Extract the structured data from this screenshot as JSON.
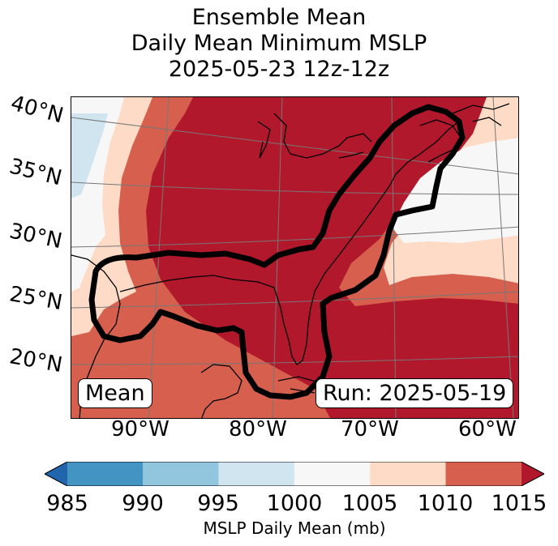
{
  "title": {
    "line1": "Ensemble Mean",
    "line2": "Daily Mean Minimum MSLP",
    "line3": "2025-05-23 12z-12z"
  },
  "map": {
    "lat_labels": [
      "40°N",
      "35°N",
      "30°N",
      "25°N",
      "20°N"
    ],
    "lon_labels": [
      "90°W",
      "80°W",
      "70°W",
      "60°W"
    ],
    "left_box": "Mean",
    "right_box": "Run: 2025-05-19",
    "contour_color": "#000000"
  },
  "colorbar": {
    "ticks": [
      "985",
      "990",
      "995",
      "1000",
      "1005",
      "1010",
      "1015"
    ],
    "label": "MSLP Daily Mean (mb)",
    "colors": {
      "under": "#2166ac",
      "c985_990": "#4393c3",
      "c990_995": "#92c5de",
      "c995_1000": "#d1e5f0",
      "c1000_1005": "#f7f7f7",
      "c1005_1010": "#fddbc7",
      "c1010_1015": "#d6604d",
      "over": "#b2182b"
    }
  }
}
